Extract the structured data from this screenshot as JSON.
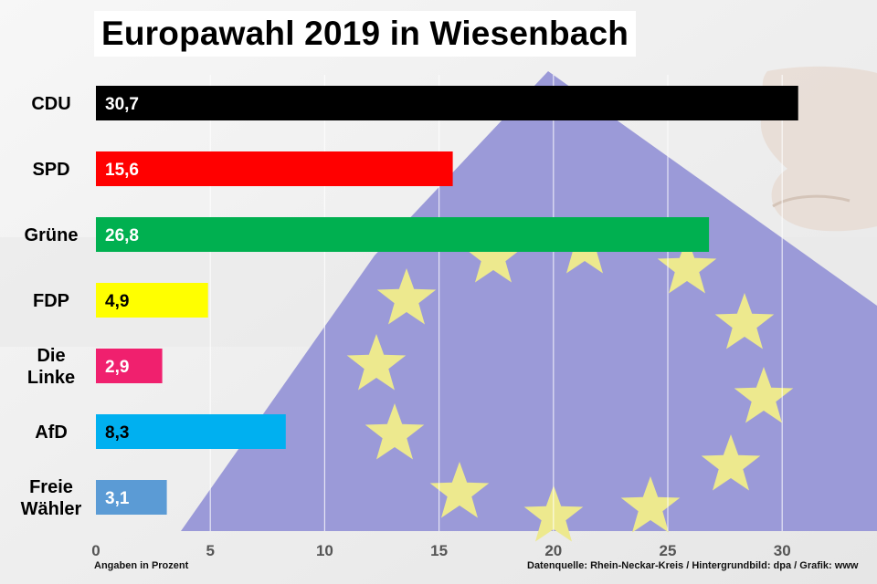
{
  "title": "Europawahl 2019 in Wiesenbach",
  "footer": {
    "left": "Angaben in Prozent",
    "right": "Datenquelle: Rhein-Neckar-Kreis / Hintergrundbild: dpa / Grafik: www"
  },
  "chart_data": {
    "type": "bar",
    "orientation": "horizontal",
    "title": "Europawahl 2019 in Wiesenbach",
    "xlabel": "",
    "ylabel": "",
    "categories": [
      "CDU",
      "SPD",
      "Grüne",
      "FDP",
      "Die Linke",
      "AfD",
      "Freie Wähler"
    ],
    "category_lines": [
      [
        "CDU"
      ],
      [
        "SPD"
      ],
      [
        "Grüne"
      ],
      [
        "FDP"
      ],
      [
        "Die",
        "Linke"
      ],
      [
        "AfD"
      ],
      [
        "Freie",
        "Wähler"
      ]
    ],
    "values": [
      30.7,
      15.6,
      26.8,
      4.9,
      2.9,
      8.3,
      3.1
    ],
    "value_labels": [
      "30,7",
      "15,6",
      "26,8",
      "4,9",
      "2,9",
      "8,3",
      "3,1"
    ],
    "colors": [
      "#000000",
      "#ff0000",
      "#00b050",
      "#ffff00",
      "#f0206e",
      "#00b0f0",
      "#5b9bd5"
    ],
    "label_colors": [
      "#ffffff",
      "#ffffff",
      "#ffffff",
      "#000000",
      "#ffffff",
      "#000000",
      "#ffffff"
    ],
    "xlim": [
      0,
      34
    ],
    "xticks": [
      0,
      5,
      10,
      15,
      20,
      25,
      30
    ],
    "grid": true,
    "legend": "none"
  }
}
